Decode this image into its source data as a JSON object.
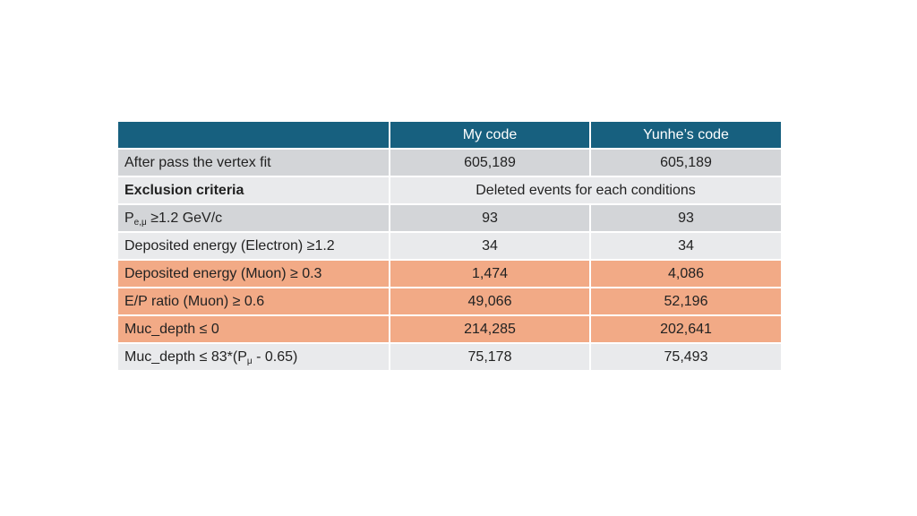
{
  "table": {
    "headers": [
      "",
      "My code",
      "Yunhe’s code"
    ],
    "rows": [
      {
        "label": "After pass the vertex fit",
        "mine": "605,189",
        "yunhe": "605,189"
      },
      {
        "label": "Exclusion criteria",
        "span_text": "Deleted events for each conditions"
      },
      {
        "label_prefix": "P",
        "label_sub": "e,μ",
        "label_suffix": " ≥1.2 GeV/c",
        "mine": "93",
        "yunhe": "93"
      },
      {
        "label": "Deposited energy (Electron) ≥1.2",
        "mine": "34",
        "yunhe": "34"
      },
      {
        "label": "Deposited energy (Muon) ≥ 0.3",
        "mine": "1,474",
        "yunhe": "4,086"
      },
      {
        "label": "E/P ratio (Muon) ≥ 0.6",
        "mine": "49,066",
        "yunhe": "52,196"
      },
      {
        "label": "Muc_depth ≤ 0",
        "mine": "214,285",
        "yunhe": "202,641"
      },
      {
        "label_prefix": "Muc_depth ≤ 83*(P",
        "label_sub": "μ",
        "label_suffix": " - 0.65)",
        "mine": "75,178",
        "yunhe": "75,493"
      }
    ]
  },
  "colors": {
    "header": "#17607f",
    "row_gray": "#d3d5d8",
    "row_light": "#e9eaec",
    "row_highlight": "#f2aa86"
  }
}
